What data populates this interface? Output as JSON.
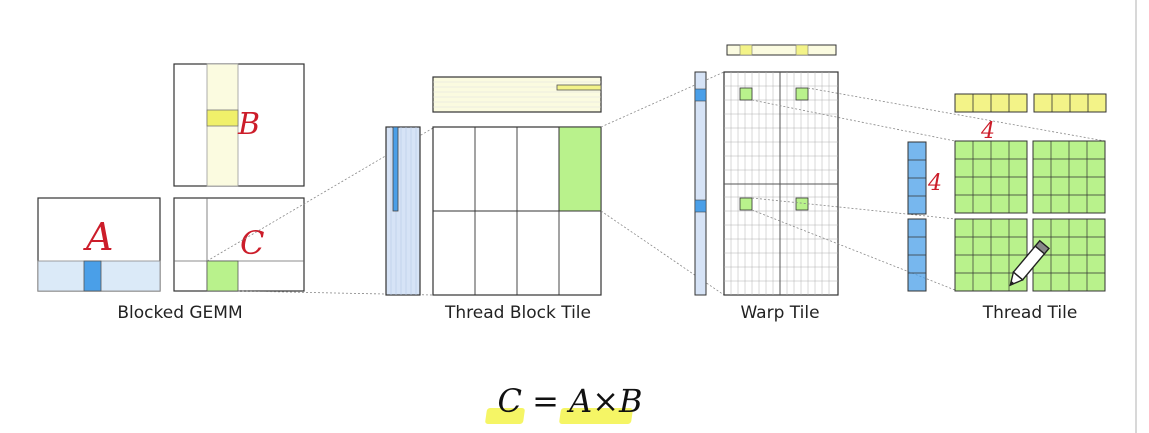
{
  "captions": {
    "blocked_gemm": "Blocked GEMM",
    "thread_block_tile": "Thread Block Tile",
    "warp_tile": "Warp Tile",
    "thread_tile": "Thread Tile"
  },
  "handwriting": {
    "a": "A",
    "b": "B",
    "c": "C",
    "four_top": "4",
    "four_left": "4"
  },
  "formula": {
    "c": "C",
    "eq": "=",
    "rhs": "A×B"
  },
  "colors": {
    "stroke": "#333333",
    "light_blue": "#dbeaf8",
    "blue": "#4a9fe8",
    "light_yellow": "#fbfbe0",
    "yellow": "#f3f388",
    "green": "#b9f28c",
    "pale_lavender": "#d6e3f6",
    "handwriting_red": "#cc1d2a"
  },
  "icons": [
    "pencil-icon"
  ]
}
